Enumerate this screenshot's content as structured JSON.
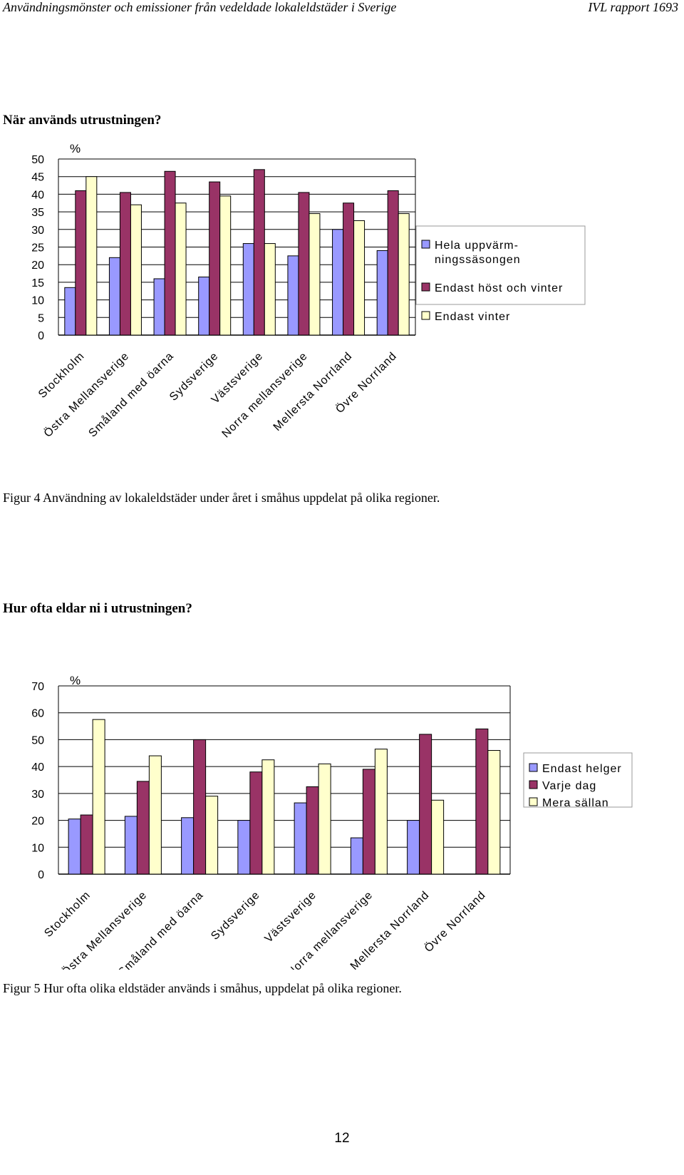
{
  "header": {
    "title": "Användningsmönster och emissioner från vedeldade lokaleldstäder i Sverige",
    "report": "IVL rapport 1693"
  },
  "section1": {
    "heading": "När används utrustningen?",
    "caption": "Figur 4 Användning av lokaleldstäder under året i småhus uppdelat på olika regioner."
  },
  "section2": {
    "heading": "Hur ofta eldar ni i utrustningen?",
    "caption": "Figur 5 Hur ofta olika eldstäder används i småhus, uppdelat på olika regioner."
  },
  "page_number": "12",
  "colors": {
    "blue": "#9999ff",
    "maroon": "#993366",
    "cream": "#ffffcc"
  },
  "chart_data": [
    {
      "type": "bar",
      "ylabel": "%",
      "ylim": [
        0,
        50
      ],
      "yticks": [
        0,
        5,
        10,
        15,
        20,
        25,
        30,
        35,
        40,
        45,
        50
      ],
      "categories": [
        "Stockholm",
        "Östra Mellansverige",
        "Småland med öarna",
        "Sydsverige",
        "Västsverige",
        "Norra mellansverige",
        "Mellersta Norrland",
        "Övre Norrland"
      ],
      "series": [
        {
          "name": "Hela uppvärm-ningssäsongen",
          "legend_lines": [
            "Hela uppvärm-",
            "ningssäsongen"
          ],
          "color": "#9999ff",
          "values": [
            13.5,
            22,
            16,
            16.5,
            26,
            22.5,
            30,
            24
          ]
        },
        {
          "name": "Endast höst och vinter",
          "legend_lines": [
            "Endast höst och vinter"
          ],
          "color": "#993366",
          "values": [
            41,
            40.5,
            46.5,
            43.5,
            47,
            40.5,
            37.5,
            41
          ]
        },
        {
          "name": "Endast vinter",
          "legend_lines": [
            "Endast vinter"
          ],
          "color": "#ffffcc",
          "values": [
            45,
            37,
            37.5,
            39.5,
            26,
            34.5,
            32.5,
            34.5
          ]
        }
      ],
      "legend_position": "right",
      "grid": true
    },
    {
      "type": "bar",
      "ylabel": "%",
      "ylim": [
        0,
        70
      ],
      "yticks": [
        0,
        10,
        20,
        30,
        40,
        50,
        60,
        70
      ],
      "categories": [
        "Stockholm",
        "Östra Mellansverige",
        "Småland med öarna",
        "Sydsverige",
        "Västsverige",
        "Norra mellansverige",
        "Mellersta Norrland",
        "Övre Norrland"
      ],
      "series": [
        {
          "name": "Endast helger",
          "legend_lines": [
            "Endast helger"
          ],
          "color": "#9999ff",
          "values": [
            20.5,
            21.5,
            21,
            20,
            26.5,
            13.5,
            20,
            0
          ]
        },
        {
          "name": "Varje dag",
          "legend_lines": [
            "Varje dag"
          ],
          "color": "#993366",
          "values": [
            22,
            34.5,
            50,
            38,
            32.5,
            39,
            52,
            54
          ]
        },
        {
          "name": "Mera sällan",
          "legend_lines": [
            "Mera sällan"
          ],
          "color": "#ffffcc",
          "values": [
            57.5,
            44,
            29,
            42.5,
            41,
            46.5,
            27.5,
            46
          ]
        }
      ],
      "legend_position": "right",
      "grid": true
    }
  ]
}
